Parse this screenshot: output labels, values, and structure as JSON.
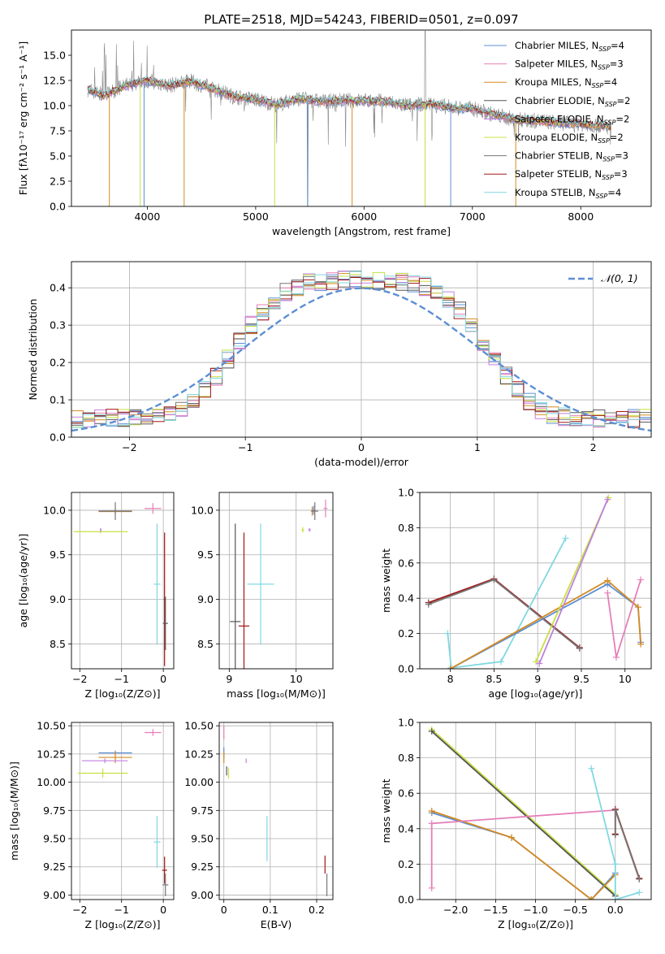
{
  "figure_title": "PLATE=2518, MJD=54243, FIBERID=0501, z=0.097",
  "colors": {
    "chabrier_miles": "#5b8fd4",
    "salpeter_miles": "#e57fb9",
    "kroupa_miles": "#d58a22",
    "chabrier_elodie": "#555555",
    "salpeter_elodie": "#c080e0",
    "kroupa_elodie": "#c8e040",
    "chabrier_stelib": "#777777",
    "salpeter_stelib": "#a01818",
    "kroupa_stelib": "#80d8e0",
    "gauss": "#5b8fd4",
    "grid": "#b0b0b0"
  },
  "legend": [
    {
      "key": "chabrier_miles",
      "text": "Chabrier MILES, N",
      "sub": "SSP",
      "tail": "=4"
    },
    {
      "key": "salpeter_miles",
      "text": "Salpeter MILES, N",
      "sub": "SSP",
      "tail": "=3"
    },
    {
      "key": "kroupa_miles",
      "text": "Kroupa MILES, N",
      "sub": "SSP",
      "tail": "=4"
    },
    {
      "key": "chabrier_elodie",
      "text": "Chabrier ELODIE, N",
      "sub": "SSP",
      "tail": "=2"
    },
    {
      "key": "salpeter_elodie",
      "text": "Salpeter ELODIE, N",
      "sub": "SSP",
      "tail": "=2"
    },
    {
      "key": "kroupa_elodie",
      "text": "Kroupa ELODIE, N",
      "sub": "SSP",
      "tail": "=2"
    },
    {
      "key": "chabrier_stelib",
      "text": "Chabrier STELIB, N",
      "sub": "SSP",
      "tail": "=3"
    },
    {
      "key": "salpeter_stelib",
      "text": "Salpeter STELIB, N",
      "sub": "SSP",
      "tail": "=3"
    },
    {
      "key": "kroupa_stelib",
      "text": "Kroupa STELIB, N",
      "sub": "SSP",
      "tail": "=4"
    }
  ],
  "chart_data": [
    {
      "id": "spectrum",
      "type": "line",
      "xlabel": "wavelength [Angstrom, rest frame]",
      "ylabel": "Flux [fλ10⁻¹⁷ erg cm⁻² s⁻¹ A⁻¹]",
      "xlim": [
        3300,
        8650
      ],
      "ylim": [
        0,
        17.5
      ],
      "xticks": [
        4000,
        5000,
        6000,
        7000,
        8000
      ],
      "yticks": [
        0.0,
        2.5,
        5.0,
        7.5,
        10.0,
        12.5,
        15.0
      ],
      "ytick_labels": [
        "0.0",
        "2.5",
        "5.0",
        "7.5",
        "10.0",
        "12.5",
        "15.0"
      ],
      "continuum": {
        "x": [
          3450,
          3600,
          3800,
          4000,
          4200,
          4400,
          4600,
          4800,
          5000,
          5200,
          5400,
          5600,
          5800,
          6000,
          6200,
          6400,
          6600,
          6800,
          7000,
          7200,
          7400,
          7600,
          7800,
          8000,
          8200,
          8280
        ],
        "y": [
          11.6,
          11.0,
          12.0,
          12.5,
          12.0,
          12.4,
          11.7,
          10.9,
          10.6,
          10.1,
          10.7,
          10.4,
          10.5,
          10.5,
          10.4,
          10.0,
          10.2,
          9.8,
          9.7,
          9.1,
          8.6,
          8.5,
          8.3,
          8.2,
          8.0,
          7.8
        ]
      },
      "note_dips": [
        3650,
        3935,
        3970,
        4340,
        5175,
        5480,
        5890,
        6563,
        6800,
        7400
      ]
    },
    {
      "id": "residuals",
      "type": "histogram",
      "xlabel": "(data-model)/error",
      "ylabel": "Normed distribution",
      "xlim": [
        -2.5,
        2.5
      ],
      "ylim": [
        0,
        0.47
      ],
      "xticks": [
        -2,
        -1,
        0,
        1,
        2
      ],
      "yticks": [
        0.0,
        0.1,
        0.2,
        0.3,
        0.4
      ],
      "ytick_labels": [
        "0.0",
        "0.1",
        "0.2",
        "0.3",
        "0.4"
      ],
      "gauss_label": "𝒩(0, 1)",
      "gauss_mu": 0,
      "gauss_sigma": 1,
      "bin_width": 0.1
    },
    {
      "id": "age_vs_Z",
      "type": "errorbar",
      "xlabel": "Z [log₁₀(Z/Z⊙)]",
      "ylabel": "age  [log₁₀(age/yr)]",
      "xlim": [
        -2.2,
        0.25
      ],
      "ylim": [
        8.22,
        10.2
      ],
      "xticks": [
        -2,
        -1,
        0
      ],
      "yticks": [
        8.5,
        9.0,
        9.5,
        10.0
      ],
      "ytick_labels": [
        "8.5",
        "9.0",
        "9.5",
        "10.0"
      ],
      "points": [
        {
          "key": "chabrier_miles",
          "x": -1.15,
          "xerr": 0.4,
          "y": 9.99,
          "yerr": 0.02
        },
        {
          "key": "kroupa_miles",
          "x": -1.15,
          "xerr": 0.4,
          "y": 9.985,
          "yerr": 0.03
        },
        {
          "key": "chabrier_stelib",
          "x": -1.15,
          "xerr": 0.4,
          "y": 9.99,
          "yerr": 0.1
        },
        {
          "key": "salpeter_miles",
          "x": -0.25,
          "xerr": 0.2,
          "y": 10.02,
          "yerr": 0.06
        },
        {
          "key": "kroupa_elodie",
          "x": -1.5,
          "xerr": 0.65,
          "y": 9.76,
          "yerr": 0.02
        },
        {
          "key": "salpeter_elodie",
          "x": -1.5,
          "xerr": 0.02,
          "y": 9.78,
          "yerr": 0.02
        },
        {
          "key": "kroupa_stelib",
          "x": -0.15,
          "xerr": 0.08,
          "y": 9.17,
          "yerr": 0.68
        },
        {
          "key": "salpeter_stelib",
          "x": 0.03,
          "xerr": 0.02,
          "y": 9.0,
          "yerr": 0.75
        },
        {
          "key": "chabrier_elodie",
          "x": 0.05,
          "xerr": 0.06,
          "y": 8.73,
          "yerr": 0.3
        }
      ]
    },
    {
      "id": "age_vs_mass",
      "type": "errorbar",
      "xlabel": "mass [log₁₀(M/M⊙)]",
      "ylabel": "",
      "xlim": [
        8.85,
        10.55
      ],
      "ylim": [
        8.22,
        10.2
      ],
      "xticks": [
        9,
        10
      ],
      "yticks": [
        8.5,
        9.0,
        9.5,
        10.0
      ],
      "ytick_labels": [
        "8.5",
        "9.0",
        "9.5",
        "10.0"
      ],
      "points": [
        {
          "key": "chabrier_elodie",
          "x": 9.09,
          "xerr": 0.08,
          "y": 8.75,
          "yerr": 1.1
        },
        {
          "key": "salpeter_stelib",
          "x": 9.22,
          "xerr": 0.08,
          "y": 8.7,
          "yerr": 1.05
        },
        {
          "key": "kroupa_stelib",
          "x": 9.47,
          "xerr": 0.2,
          "y": 9.17,
          "yerr": 0.68
        },
        {
          "key": "kroupa_elodie",
          "x": 10.1,
          "xerr": 0.02,
          "y": 9.78,
          "yerr": 0.03
        },
        {
          "key": "salpeter_elodie",
          "x": 10.2,
          "xerr": 0.02,
          "y": 9.78,
          "yerr": 0.02
        },
        {
          "key": "chabrier_miles",
          "x": 10.26,
          "xerr": 0.02,
          "y": 10.0,
          "yerr": 0.05
        },
        {
          "key": "kroupa_miles",
          "x": 10.24,
          "xerr": 0.02,
          "y": 9.99,
          "yerr": 0.05
        },
        {
          "key": "chabrier_stelib",
          "x": 10.28,
          "xerr": 0.05,
          "y": 9.99,
          "yerr": 0.1
        },
        {
          "key": "salpeter_miles",
          "x": 10.44,
          "xerr": 0.03,
          "y": 10.02,
          "yerr": 0.1
        }
      ]
    },
    {
      "id": "weight_vs_age",
      "type": "line",
      "xlabel": "age  [log₁₀(age/yr)]",
      "ylabel": "mass weight",
      "xlim": [
        7.65,
        10.3
      ],
      "ylim": [
        0,
        1.0
      ],
      "xticks": [
        8.0,
        8.5,
        9.0,
        9.5,
        10.0
      ],
      "yticks": [
        0.0,
        0.2,
        0.4,
        0.6,
        0.8,
        1.0
      ],
      "ytick_labels": [
        "0.0",
        "0.2",
        "0.4",
        "0.6",
        "0.8",
        "1.0"
      ],
      "series": [
        {
          "key": "salpeter_stelib",
          "x": [
            7.75,
            8.5,
            9.48
          ],
          "y": [
            0.375,
            0.51,
            0.12
          ]
        },
        {
          "key": "chabrier_stelib",
          "x": [
            7.75,
            8.5,
            9.48
          ],
          "y": [
            0.365,
            0.505,
            0.115
          ]
        },
        {
          "key": "kroupa_stelib",
          "x": [
            7.97,
            8.01,
            8.58,
            9.32
          ],
          "y": [
            0.2,
            0.005,
            0.04,
            0.74
          ]
        },
        {
          "key": "chabrier_miles",
          "x": [
            8.0,
            9.8,
            10.15,
            10.18
          ],
          "y": [
            0.0,
            0.48,
            0.35,
            0.15
          ]
        },
        {
          "key": "kroupa_miles",
          "x": [
            8.0,
            9.8,
            10.15,
            10.18
          ],
          "y": [
            0.0,
            0.5,
            0.35,
            0.14
          ]
        },
        {
          "key": "kroupa_elodie",
          "x": [
            8.98,
            9.81
          ],
          "y": [
            0.04,
            0.97
          ]
        },
        {
          "key": "salpeter_elodie",
          "x": [
            9.02,
            9.8
          ],
          "y": [
            0.03,
            0.96
          ]
        },
        {
          "key": "salpeter_miles",
          "x": [
            9.8,
            9.9,
            10.18
          ],
          "y": [
            0.43,
            0.065,
            0.505
          ]
        }
      ]
    },
    {
      "id": "mass_vs_Z",
      "type": "errorbar",
      "xlabel": "Z [log₁₀(Z/Z⊙)]",
      "ylabel": "mass [log₁₀(M/M⊙)]",
      "xlim": [
        -2.2,
        0.25
      ],
      "ylim": [
        8.96,
        10.53
      ],
      "xticks": [
        -2,
        -1,
        0
      ],
      "yticks": [
        9.0,
        9.25,
        9.5,
        9.75,
        10.0,
        10.25,
        10.5
      ],
      "ytick_labels": [
        "9.00",
        "9.25",
        "9.50",
        "9.75",
        "10.00",
        "10.25",
        "10.50"
      ],
      "points": [
        {
          "key": "salpeter_miles",
          "x": -0.25,
          "xerr": 0.2,
          "y": 10.44,
          "yerr": 0.03
        },
        {
          "key": "chabrier_miles",
          "x": -1.15,
          "xerr": 0.4,
          "y": 10.26,
          "yerr": 0.02
        },
        {
          "key": "kroupa_miles",
          "x": -1.15,
          "xerr": 0.4,
          "y": 10.22,
          "yerr": 0.05
        },
        {
          "key": "salpeter_elodie",
          "x": -1.4,
          "xerr": 0.55,
          "y": 10.19,
          "yerr": 0.02
        },
        {
          "key": "kroupa_elodie",
          "x": -1.45,
          "xerr": 0.6,
          "y": 10.08,
          "yerr": 0.04
        },
        {
          "key": "kroupa_stelib",
          "x": -0.15,
          "xerr": 0.08,
          "y": 9.47,
          "yerr": 0.23
        },
        {
          "key": "salpeter_stelib",
          "x": 0.03,
          "xerr": 0.06,
          "y": 9.22,
          "yerr": 0.12
        },
        {
          "key": "chabrier_stelib",
          "x": 0.05,
          "xerr": 0.07,
          "y": 9.09,
          "yerr": 0.1
        }
      ]
    },
    {
      "id": "mass_vs_ebv",
      "type": "errorbar",
      "xlabel": "E(B-V)",
      "ylabel": "",
      "xlim": [
        -0.01,
        0.235
      ],
      "ylim": [
        8.96,
        10.53
      ],
      "xticks": [
        0.0,
        0.1,
        0.2
      ],
      "yticks": [
        9.0,
        9.25,
        9.5,
        9.75,
        10.0,
        10.25,
        10.5
      ],
      "ytick_labels": [
        "9.00",
        "9.25",
        "9.50",
        "9.75",
        "10.00",
        "10.25",
        "10.50"
      ],
      "points": [
        {
          "key": "salpeter_miles",
          "x": 0.0,
          "xerr": 0.0,
          "y": 10.44,
          "yerr": 0.06
        },
        {
          "key": "chabrier_miles",
          "x": 0.0,
          "xerr": 0.0,
          "y": 10.26,
          "yerr": 0.05
        },
        {
          "key": "kroupa_miles",
          "x": 0.0,
          "xerr": 0.0,
          "y": 10.22,
          "yerr": 0.05
        },
        {
          "key": "salpeter_elodie",
          "x": 0.048,
          "xerr": 0.0,
          "y": 10.19,
          "yerr": 0.02
        },
        {
          "key": "kroupa_elodie",
          "x": 0.01,
          "xerr": 0.0,
          "y": 10.08,
          "yerr": 0.05
        },
        {
          "key": "chabrier_elodie",
          "x": 0.006,
          "xerr": 0.0,
          "y": 10.1,
          "yerr": 0.04
        },
        {
          "key": "kroupa_stelib",
          "x": 0.093,
          "xerr": 0.0,
          "y": 9.5,
          "yerr": 0.2
        },
        {
          "key": "salpeter_stelib",
          "x": 0.218,
          "xerr": 0.0,
          "y": 9.27,
          "yerr": 0.08
        },
        {
          "key": "chabrier_stelib",
          "x": 0.222,
          "xerr": 0.0,
          "y": 9.09,
          "yerr": 0.1
        }
      ]
    },
    {
      "id": "weight_vs_Z",
      "type": "line",
      "xlabel": "Z [log₁₀(Z/Z⊙)]",
      "ylabel": "mass weight",
      "xlim": [
        -2.45,
        0.45
      ],
      "ylim": [
        0,
        1.0
      ],
      "xticks": [
        -2.0,
        -1.5,
        -1.0,
        -0.5,
        0.0
      ],
      "xtick_labels": [
        "−2.0",
        "−1.5",
        "−1.0",
        "−0.5",
        "0.0"
      ],
      "yticks": [
        0.0,
        0.2,
        0.4,
        0.6,
        0.8,
        1.0
      ],
      "ytick_labels": [
        "0.0",
        "0.2",
        "0.4",
        "0.6",
        "0.8",
        "1.0"
      ],
      "series": [
        {
          "key": "kroupa_elodie",
          "x": [
            -2.3,
            0.0
          ],
          "y": [
            0.96,
            0.03
          ]
        },
        {
          "key": "chabrier_elodie",
          "x": [
            -2.3,
            0.0
          ],
          "y": [
            0.95,
            0.02
          ]
        },
        {
          "key": "chabrier_miles",
          "x": [
            -2.3,
            -1.3,
            -0.3,
            0.0
          ],
          "y": [
            0.49,
            0.35,
            0.0,
            0.15
          ]
        },
        {
          "key": "kroupa_miles",
          "x": [
            -2.3,
            -1.3,
            -0.3,
            0.0
          ],
          "y": [
            0.5,
            0.35,
            0.0,
            0.14
          ]
        },
        {
          "key": "salpeter_miles",
          "x": [
            -2.3,
            -2.3,
            0.0
          ],
          "y": [
            0.065,
            0.43,
            0.505
          ]
        },
        {
          "key": "salpeter_stelib",
          "x": [
            0.0,
            0.0,
            0.3
          ],
          "y": [
            0.37,
            0.51,
            0.12
          ]
        },
        {
          "key": "chabrier_stelib",
          "x": [
            0.0,
            0.0,
            0.3
          ],
          "y": [
            0.365,
            0.505,
            0.115
          ]
        },
        {
          "key": "kroupa_stelib",
          "x": [
            -0.3,
            0.0,
            0.0,
            0.3
          ],
          "y": [
            0.74,
            0.2,
            0.0,
            0.04
          ]
        }
      ]
    }
  ]
}
